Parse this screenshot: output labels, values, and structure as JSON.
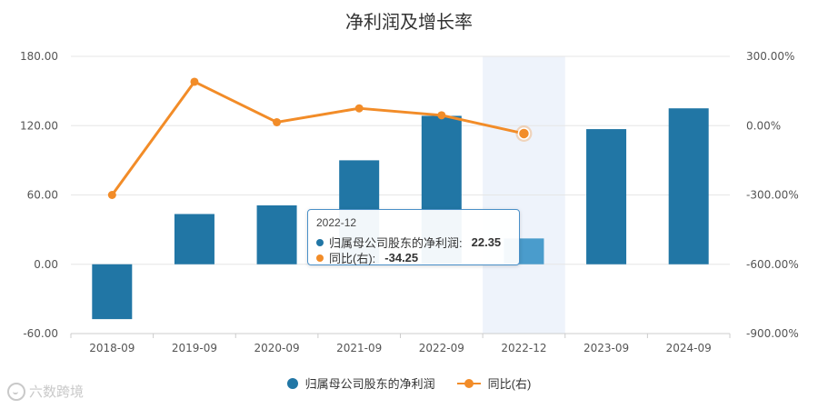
{
  "chart_data": {
    "type": "bar",
    "title": "净利润及增长率",
    "categories": [
      "2018-09",
      "2019-09",
      "2020-09",
      "2021-09",
      "2022-09",
      "2022-12",
      "2023-09",
      "2024-09"
    ],
    "series": [
      {
        "name": "归属母公司股东的净利润",
        "type": "bar",
        "axis": "left",
        "color": "#2176a5",
        "values": [
          -47.5,
          43.5,
          51.0,
          90.0,
          128.5,
          22.35,
          117.0,
          135.0
        ]
      },
      {
        "name": "同比(右)",
        "type": "line",
        "axis": "right",
        "color": "#f28c28",
        "values": [
          -300.0,
          190.0,
          15.0,
          75.0,
          45.0,
          -34.25,
          null,
          null
        ]
      }
    ],
    "left_axis": {
      "ylim": [
        -60,
        180
      ],
      "ticks": [
        "-60.00",
        "0.00",
        "60.00",
        "120.00",
        "180.00"
      ]
    },
    "right_axis": {
      "ylim": [
        -900,
        300
      ],
      "ticks": [
        "-900.00%",
        "-600.00%",
        "-300.00%",
        "0.00%",
        "300.00%"
      ]
    },
    "highlighted_category": "2022-12",
    "grid": true,
    "legend_position": "bottom-center"
  },
  "tooltip": {
    "title": "2022-12",
    "rows": [
      {
        "label": "归属母公司股东的净利润:",
        "value": "22.35",
        "color": "#2176a5"
      },
      {
        "label": "同比(右):",
        "value": "-34.25",
        "color": "#f28c28"
      }
    ]
  },
  "legend": {
    "bar_label": "归属母公司股东的净利润",
    "line_label": "同比(右)"
  },
  "watermark": {
    "text": "六数跨境",
    "icon": "watermark-logo-icon"
  }
}
